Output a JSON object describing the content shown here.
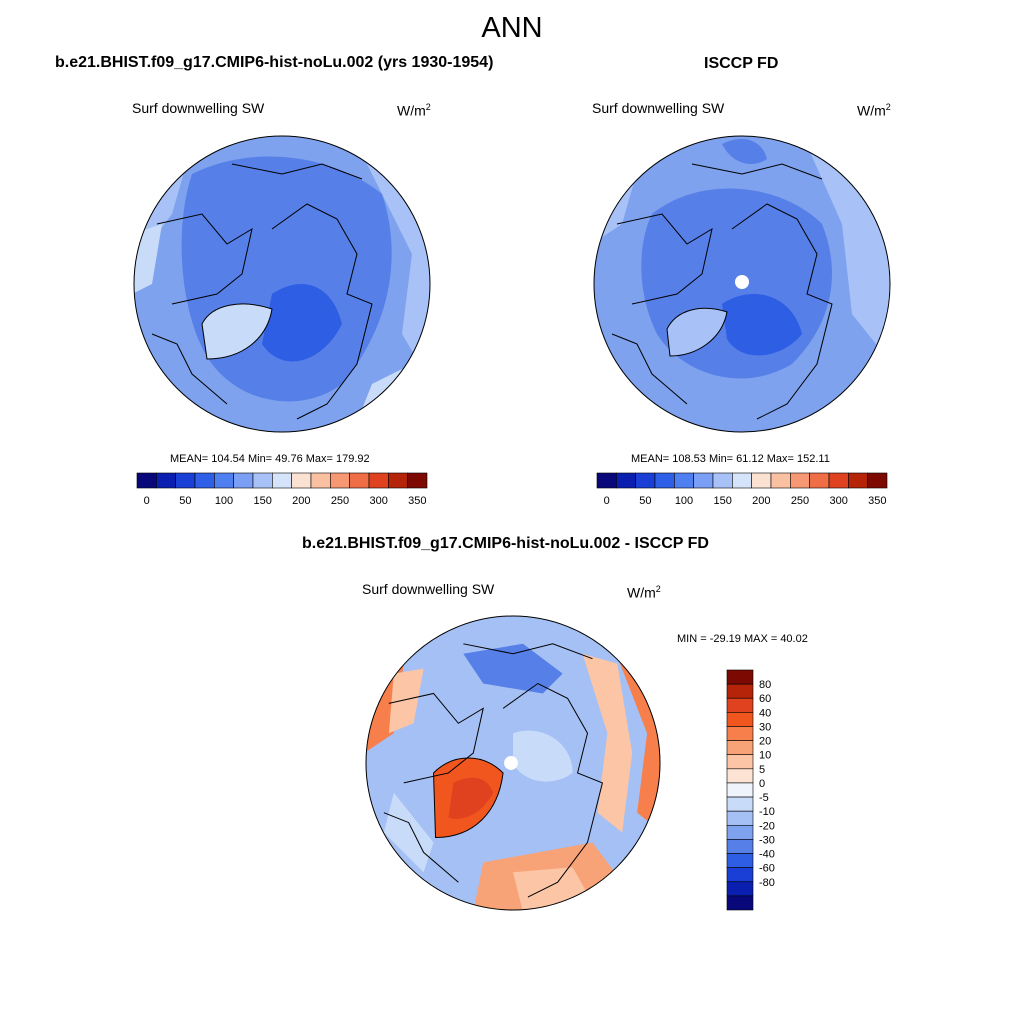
{
  "title": "ANN",
  "panels": [
    {
      "id": "model",
      "heading": "b.e21.BHIST.f09_g17.CMIP6-hist-noLu.002 (yrs 1930-1954)",
      "variable": "Surf downwelling SW",
      "units": "W/m",
      "units_sup": "2",
      "stats": "MEAN= 104.54  Min=  49.76  Max= 179.92"
    },
    {
      "id": "obs",
      "heading": "ISCCP FD",
      "variable": "Surf downwelling SW",
      "units": "W/m",
      "units_sup": "2",
      "stats": "MEAN= 108.53  Min=  61.12  Max= 152.11"
    },
    {
      "id": "diff",
      "heading": "b.e21.BHIST.f09_g17.CMIP6-hist-noLu.002 - ISCCP FD",
      "variable": "Surf downwelling SW",
      "units": "W/m",
      "units_sup": "2",
      "stats": "MIN = -29.19 MAX =  40.02"
    }
  ],
  "abs_colorbar": {
    "colors": [
      "#08087a",
      "#0a1fb0",
      "#1a3fd6",
      "#2f5fe6",
      "#4f7ff0",
      "#7b9ff5",
      "#a8c2f8",
      "#d6e4fb",
      "#fbe1d2",
      "#f9c0a2",
      "#f59873",
      "#f06e46",
      "#e0421f",
      "#b52408",
      "#7d0a02"
    ],
    "labels": [
      "0",
      "50",
      "100",
      "150",
      "200",
      "250",
      "300",
      "350"
    ]
  },
  "diff_colorbar": {
    "colors": [
      "#7d0a02",
      "#b52408",
      "#e0421f",
      "#f2561f",
      "#f67f4b",
      "#f8a277",
      "#fbc5a6",
      "#fde3d3",
      "#eef3fc",
      "#c8dbf8",
      "#a5c0f4",
      "#7ea2ee",
      "#567fe8",
      "#2e5ee4",
      "#1a3fd6",
      "#0a1fb0",
      "#08087a"
    ],
    "labels": [
      "80",
      "60",
      "40",
      "30",
      "20",
      "10",
      "5",
      "0",
      "-5",
      "-10",
      "-20",
      "-30",
      "-40",
      "-60",
      "-80"
    ]
  }
}
